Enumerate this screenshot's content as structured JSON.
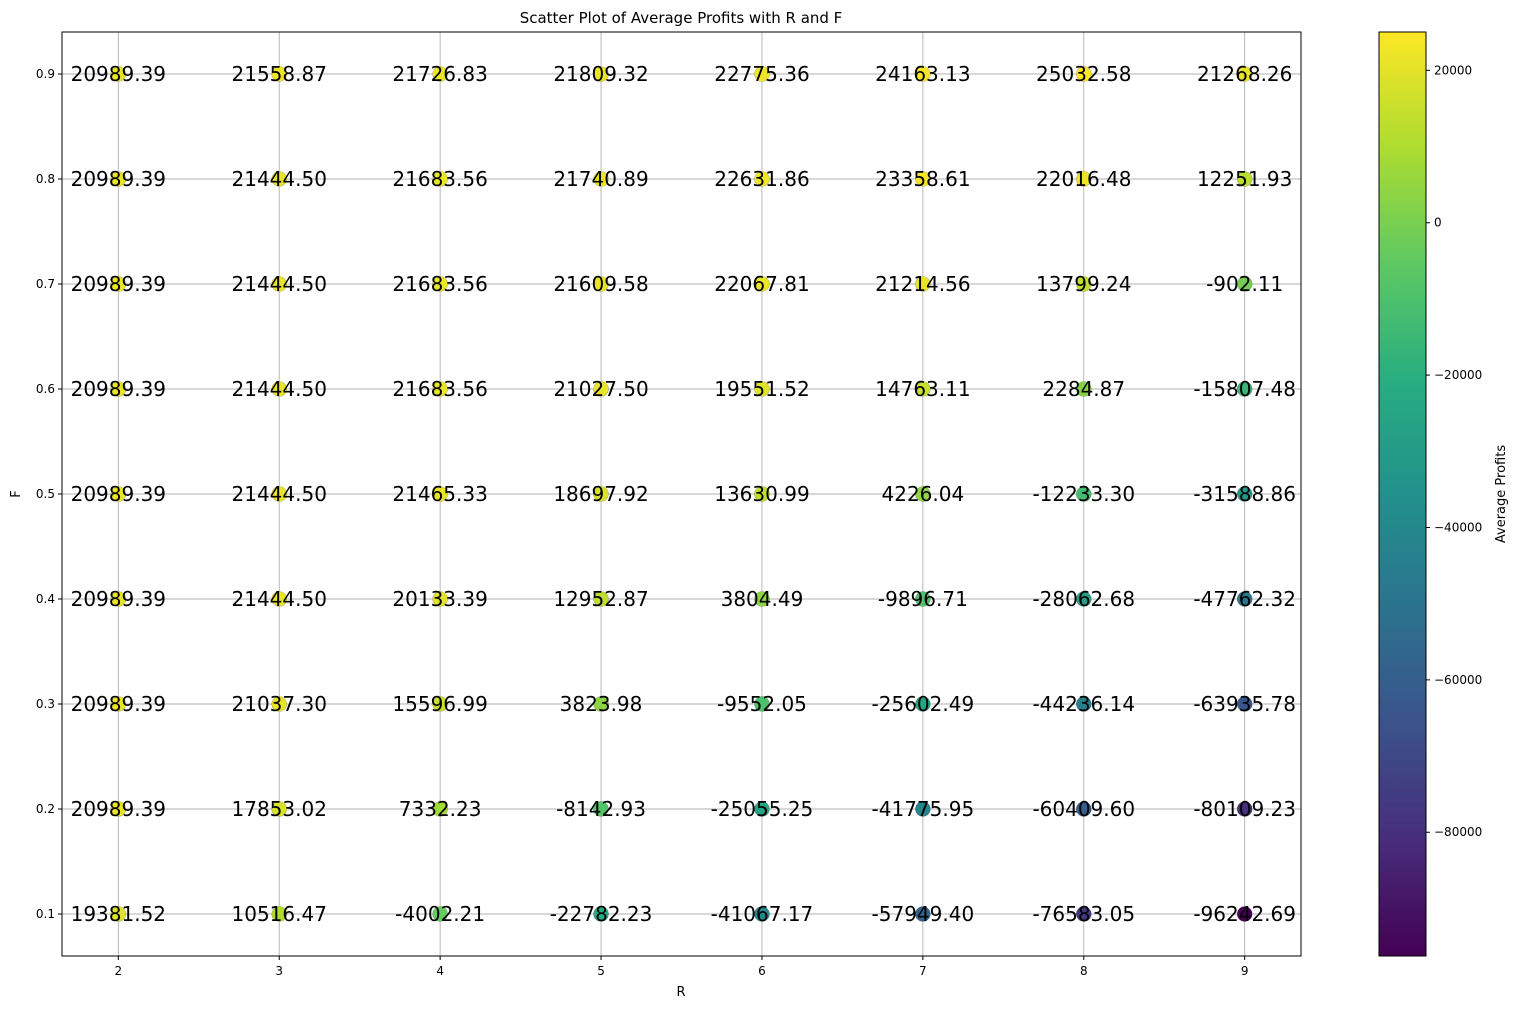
{
  "chart_data": {
    "type": "scatter",
    "title": "Scatter Plot of Average Profits with R and F",
    "xlabel": "R",
    "ylabel": "F",
    "x_ticks": [
      2,
      3,
      4,
      5,
      6,
      7,
      8,
      9
    ],
    "y_ticks": [
      0.1,
      0.2,
      0.3,
      0.4,
      0.5,
      0.6,
      0.7,
      0.8,
      0.9
    ],
    "y_tick_labels": [
      "0.1",
      "0.2",
      "0.3",
      "0.4",
      "0.5",
      "0.6",
      "0.7",
      "0.8",
      "0.9"
    ],
    "xlim": [
      1.65,
      9.35
    ],
    "ylim": [
      0.06,
      0.94
    ],
    "grid": true,
    "colormap": "viridis",
    "highlight_color": "#ff0000",
    "colorbar": {
      "label": "Average Profits",
      "range": [
        -96242.69,
        25032.58
      ],
      "ticks": [
        20000,
        0,
        -20000,
        -40000,
        -60000,
        -80000
      ],
      "tick_labels": [
        "20000",
        "0",
        "−20000",
        "−40000",
        "−60000",
        "−80000"
      ]
    },
    "points": [
      {
        "r": 2,
        "f": 0.9,
        "value": 20989.39,
        "label": "20989.39"
      },
      {
        "r": 3,
        "f": 0.9,
        "value": 21558.87,
        "label": "21558.87"
      },
      {
        "r": 4,
        "f": 0.9,
        "value": 21726.83,
        "label": "21726.83"
      },
      {
        "r": 5,
        "f": 0.9,
        "value": 21809.32,
        "label": "21809.32"
      },
      {
        "r": 6,
        "f": 0.9,
        "value": 22775.36,
        "label": "22775.36"
      },
      {
        "r": 7,
        "f": 0.9,
        "value": 24163.13,
        "label": "24163.13"
      },
      {
        "r": 8,
        "f": 0.9,
        "value": 25032.58,
        "label": "25032.58",
        "highlight": true
      },
      {
        "r": 9,
        "f": 0.9,
        "value": 21268.26,
        "label": "21268.26"
      },
      {
        "r": 2,
        "f": 0.8,
        "value": 20989.39,
        "label": "20989.39"
      },
      {
        "r": 3,
        "f": 0.8,
        "value": 21444.5,
        "label": "21444.50"
      },
      {
        "r": 4,
        "f": 0.8,
        "value": 21683.56,
        "label": "21683.56"
      },
      {
        "r": 5,
        "f": 0.8,
        "value": 21740.89,
        "label": "21740.89"
      },
      {
        "r": 6,
        "f": 0.8,
        "value": 22631.86,
        "label": "22631.86"
      },
      {
        "r": 7,
        "f": 0.8,
        "value": 23358.61,
        "label": "23358.61"
      },
      {
        "r": 8,
        "f": 0.8,
        "value": 22016.48,
        "label": "22016.48"
      },
      {
        "r": 9,
        "f": 0.8,
        "value": 12251.93,
        "label": "12251.93"
      },
      {
        "r": 2,
        "f": 0.7,
        "value": 20989.39,
        "label": "20989.39"
      },
      {
        "r": 3,
        "f": 0.7,
        "value": 21444.5,
        "label": "21444.50"
      },
      {
        "r": 4,
        "f": 0.7,
        "value": 21683.56,
        "label": "21683.56"
      },
      {
        "r": 5,
        "f": 0.7,
        "value": 21609.58,
        "label": "21609.58"
      },
      {
        "r": 6,
        "f": 0.7,
        "value": 22067.81,
        "label": "22067.81"
      },
      {
        "r": 7,
        "f": 0.7,
        "value": 21214.56,
        "label": "21214.56"
      },
      {
        "r": 8,
        "f": 0.7,
        "value": 13799.24,
        "label": "13799.24"
      },
      {
        "r": 9,
        "f": 0.7,
        "value": -902.11,
        "label": "-902.11"
      },
      {
        "r": 2,
        "f": 0.6,
        "value": 20989.39,
        "label": "20989.39"
      },
      {
        "r": 3,
        "f": 0.6,
        "value": 21444.5,
        "label": "21444.50"
      },
      {
        "r": 4,
        "f": 0.6,
        "value": 21683.56,
        "label": "21683.56"
      },
      {
        "r": 5,
        "f": 0.6,
        "value": 21027.5,
        "label": "21027.50"
      },
      {
        "r": 6,
        "f": 0.6,
        "value": 19551.52,
        "label": "19551.52"
      },
      {
        "r": 7,
        "f": 0.6,
        "value": 14763.11,
        "label": "14763.11"
      },
      {
        "r": 8,
        "f": 0.6,
        "value": 2284.87,
        "label": "2284.87"
      },
      {
        "r": 9,
        "f": 0.6,
        "value": -15807.48,
        "label": "-15807.48"
      },
      {
        "r": 2,
        "f": 0.5,
        "value": 20989.39,
        "label": "20989.39"
      },
      {
        "r": 3,
        "f": 0.5,
        "value": 21444.5,
        "label": "21444.50"
      },
      {
        "r": 4,
        "f": 0.5,
        "value": 21465.33,
        "label": "21465.33"
      },
      {
        "r": 5,
        "f": 0.5,
        "value": 18697.92,
        "label": "18697.92"
      },
      {
        "r": 6,
        "f": 0.5,
        "value": 13630.99,
        "label": "13630.99"
      },
      {
        "r": 7,
        "f": 0.5,
        "value": 4226.04,
        "label": "4226.04"
      },
      {
        "r": 8,
        "f": 0.5,
        "value": -12233.3,
        "label": "-12233.30"
      },
      {
        "r": 9,
        "f": 0.5,
        "value": -31588.86,
        "label": "-31588.86"
      },
      {
        "r": 2,
        "f": 0.4,
        "value": 20989.39,
        "label": "20989.39"
      },
      {
        "r": 3,
        "f": 0.4,
        "value": 21444.5,
        "label": "21444.50"
      },
      {
        "r": 4,
        "f": 0.4,
        "value": 20133.39,
        "label": "20133.39"
      },
      {
        "r": 5,
        "f": 0.4,
        "value": 12952.87,
        "label": "12952.87"
      },
      {
        "r": 6,
        "f": 0.4,
        "value": 3804.49,
        "label": "3804.49"
      },
      {
        "r": 7,
        "f": 0.4,
        "value": -9896.71,
        "label": "-9896.71"
      },
      {
        "r": 8,
        "f": 0.4,
        "value": -28062.68,
        "label": "-28062.68"
      },
      {
        "r": 9,
        "f": 0.4,
        "value": -47762.32,
        "label": "-47762.32"
      },
      {
        "r": 2,
        "f": 0.3,
        "value": 20989.39,
        "label": "20989.39"
      },
      {
        "r": 3,
        "f": 0.3,
        "value": 21037.3,
        "label": "21037.30"
      },
      {
        "r": 4,
        "f": 0.3,
        "value": 15596.99,
        "label": "15596.99"
      },
      {
        "r": 5,
        "f": 0.3,
        "value": 3823.98,
        "label": "3823.98"
      },
      {
        "r": 6,
        "f": 0.3,
        "value": -9552.05,
        "label": "-9552.05"
      },
      {
        "r": 7,
        "f": 0.3,
        "value": -25602.49,
        "label": "-25602.49"
      },
      {
        "r": 8,
        "f": 0.3,
        "value": -44236.14,
        "label": "-44236.14"
      },
      {
        "r": 9,
        "f": 0.3,
        "value": -63935.78,
        "label": "-63935.78"
      },
      {
        "r": 2,
        "f": 0.2,
        "value": 20989.39,
        "label": "20989.39"
      },
      {
        "r": 3,
        "f": 0.2,
        "value": 17853.02,
        "label": "17853.02"
      },
      {
        "r": 4,
        "f": 0.2,
        "value": 7332.23,
        "label": "7332.23"
      },
      {
        "r": 5,
        "f": 0.2,
        "value": -8142.93,
        "label": "-8142.93"
      },
      {
        "r": 6,
        "f": 0.2,
        "value": -25055.25,
        "label": "-25055.25"
      },
      {
        "r": 7,
        "f": 0.2,
        "value": -41775.95,
        "label": "-41775.95"
      },
      {
        "r": 8,
        "f": 0.2,
        "value": -60409.6,
        "label": "-60409.60"
      },
      {
        "r": 9,
        "f": 0.2,
        "value": -80109.23,
        "label": "-80109.23"
      },
      {
        "r": 2,
        "f": 0.1,
        "value": 19381.52,
        "label": "19381.52"
      },
      {
        "r": 3,
        "f": 0.1,
        "value": 10516.47,
        "label": "10516.47"
      },
      {
        "r": 4,
        "f": 0.1,
        "value": -4002.21,
        "label": "-4002.21"
      },
      {
        "r": 5,
        "f": 0.1,
        "value": -22782.23,
        "label": "-22782.23"
      },
      {
        "r": 6,
        "f": 0.1,
        "value": -41067.17,
        "label": "-41067.17"
      },
      {
        "r": 7,
        "f": 0.1,
        "value": -57949.4,
        "label": "-57949.40"
      },
      {
        "r": 8,
        "f": 0.1,
        "value": -76583.05,
        "label": "-76583.05"
      },
      {
        "r": 9,
        "f": 0.1,
        "value": -96242.69,
        "label": "-96242.69"
      }
    ]
  }
}
